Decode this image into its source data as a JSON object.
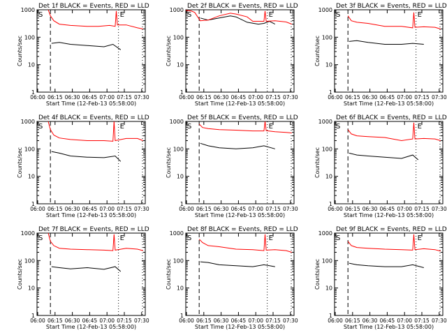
{
  "chart_data": [
    {
      "type": "line",
      "title": "Det 1f BLACK = Events, RED = LLD",
      "xlabel": "Start Time (12-Feb-13 05:58:00)",
      "ylabel": "Counts/sec",
      "xticks": [
        "06:00",
        "06:15",
        "06:30",
        "06:45",
        "07:00",
        "07:15",
        "07:30"
      ],
      "yticks": [
        "1",
        "10",
        "100",
        "1000"
      ],
      "x_range_min": [
        0,
        97
      ],
      "ylim": [
        1,
        1000
      ],
      "y_scale": "log",
      "series": [
        {
          "name": "BLACK = Events",
          "color": "#000000",
          "x": [
            13,
            20,
            30,
            45,
            60,
            68,
            75
          ],
          "y": [
            60,
            65,
            55,
            50,
            45,
            55,
            35
          ]
        },
        {
          "name": "RED = LLD",
          "color": "#ff0000",
          "x": [
            10,
            12,
            15,
            20,
            30,
            45,
            55,
            65,
            70,
            71,
            72,
            80,
            90,
            95
          ],
          "y": [
            1000,
            600,
            400,
            300,
            270,
            250,
            250,
            270,
            250,
            900,
            280,
            280,
            220,
            200
          ]
        }
      ],
      "markers": {
        "S": 12,
        "E": 73
      }
    },
    {
      "type": "line",
      "title": "Det 2f BLACK = Events, RED = LLD",
      "xlabel": "Start Time (12-Feb-13 05:58:00)",
      "ylabel": "Counts/sec",
      "xticks": [
        "06:00",
        "06:15",
        "06:30",
        "06:45",
        "07:00",
        "07:15",
        "07:30"
      ],
      "yticks": [
        "1",
        "10",
        "100",
        "1000"
      ],
      "x_range_min": [
        0,
        97
      ],
      "ylim": [
        1,
        1000
      ],
      "y_scale": "log",
      "series": [
        {
          "name": "BLACK = Events",
          "color": "#000000",
          "x": [
            13,
            20,
            30,
            40,
            45,
            55,
            65,
            70,
            75,
            80
          ],
          "y": [
            500,
            420,
            500,
            600,
            550,
            350,
            300,
            320,
            380,
            300
          ]
        },
        {
          "name": "RED = LLD",
          "color": "#ff0000",
          "x": [
            0,
            5,
            8,
            10,
            13,
            20,
            30,
            40,
            45,
            55,
            60,
            70,
            71,
            72,
            80,
            90,
            95
          ],
          "y": [
            950,
            900,
            800,
            600,
            400,
            420,
            600,
            750,
            700,
            550,
            380,
            380,
            900,
            380,
            400,
            360,
            300
          ]
        }
      ],
      "markers": {
        "S": 12,
        "E": 73
      }
    },
    {
      "type": "line",
      "title": "Det 3f BLACK = Events, RED = LLD",
      "xlabel": "Start Time (12-Feb-13 05:58:00)",
      "ylabel": "Counts/sec",
      "xticks": [
        "06:00",
        "06:15",
        "06:30",
        "06:45",
        "07:00",
        "07:15",
        "07:30"
      ],
      "yticks": [
        "1",
        "10",
        "100",
        "1000"
      ],
      "x_range_min": [
        0,
        97
      ],
      "ylim": [
        1,
        1000
      ],
      "y_scale": "log",
      "series": [
        {
          "name": "BLACK = Events",
          "color": "#000000",
          "x": [
            13,
            20,
            30,
            45,
            60,
            70,
            80
          ],
          "y": [
            70,
            75,
            65,
            55,
            55,
            60,
            55
          ]
        },
        {
          "name": "RED = LLD",
          "color": "#ff0000",
          "x": [
            12,
            15,
            20,
            30,
            45,
            60,
            70,
            71,
            72,
            80,
            90,
            95
          ],
          "y": [
            600,
            400,
            350,
            320,
            250,
            250,
            220,
            800,
            230,
            240,
            230,
            200
          ]
        }
      ],
      "markers": {
        "S": 12,
        "E": 73
      }
    },
    {
      "type": "line",
      "title": "Det 4f BLACK = Events, RED = LLD",
      "xlabel": "Start Time (12-Feb-13 05:58:00)",
      "ylabel": "Counts/sec",
      "xticks": [
        "06:00",
        "06:15",
        "06:30",
        "06:45",
        "07:00",
        "07:15",
        "07:30"
      ],
      "yticks": [
        "1",
        "10",
        "100",
        "1000"
      ],
      "x_range_min": [
        0,
        97
      ],
      "ylim": [
        1,
        1000
      ],
      "y_scale": "log",
      "series": [
        {
          "name": "BLACK = Events",
          "color": "#000000",
          "x": [
            13,
            20,
            30,
            45,
            60,
            70,
            75
          ],
          "y": [
            80,
            70,
            55,
            50,
            48,
            55,
            35
          ]
        },
        {
          "name": "RED = LLD",
          "color": "#ff0000",
          "x": [
            10,
            12,
            15,
            20,
            30,
            45,
            60,
            68,
            69,
            70,
            80,
            90,
            95
          ],
          "y": [
            1000,
            500,
            320,
            250,
            220,
            200,
            200,
            190,
            1000,
            200,
            240,
            240,
            200
          ]
        }
      ],
      "markers": {
        "S": 12,
        "E": 73
      }
    },
    {
      "type": "line",
      "title": "Det 5f BLACK = Events, RED = LLD",
      "xlabel": "Start Time (12-Feb-13 05:58:00)",
      "ylabel": "Counts/sec",
      "xticks": [
        "06:00",
        "06:15",
        "06:30",
        "06:45",
        "07:00",
        "07:15",
        "07:30"
      ],
      "yticks": [
        "1",
        "10",
        "100",
        "1000"
      ],
      "x_range_min": [
        0,
        97
      ],
      "ylim": [
        1,
        1000
      ],
      "y_scale": "log",
      "series": [
        {
          "name": "BLACK = Events",
          "color": "#000000",
          "x": [
            13,
            20,
            30,
            45,
            60,
            70,
            80
          ],
          "y": [
            160,
            130,
            110,
            100,
            110,
            130,
            100
          ]
        },
        {
          "name": "RED = LLD",
          "color": "#ff0000",
          "x": [
            12,
            15,
            20,
            30,
            45,
            60,
            70,
            71,
            72,
            80,
            90,
            95
          ],
          "y": [
            800,
            600,
            550,
            500,
            480,
            450,
            450,
            1000,
            460,
            420,
            400,
            380
          ]
        }
      ],
      "markers": {
        "S": 12,
        "E": 73
      }
    },
    {
      "type": "line",
      "title": "Det 6f BLACK = Events, RED = LLD",
      "xlabel": "Start Time (12-Feb-13 05:58:00)",
      "ylabel": "Counts/sec",
      "xticks": [
        "06:00",
        "06:15",
        "06:30",
        "06:45",
        "07:00",
        "07:15",
        "07:30"
      ],
      "yticks": [
        "1",
        "10",
        "100",
        "1000"
      ],
      "x_range_min": [
        0,
        97
      ],
      "ylim": [
        1,
        1000
      ],
      "y_scale": "log",
      "series": [
        {
          "name": "BLACK = Events",
          "color": "#000000",
          "x": [
            13,
            20,
            30,
            45,
            60,
            70,
            75
          ],
          "y": [
            70,
            60,
            55,
            50,
            45,
            60,
            40
          ]
        },
        {
          "name": "RED = LLD",
          "color": "#ff0000",
          "x": [
            12,
            15,
            20,
            30,
            45,
            60,
            70,
            71,
            72,
            80,
            90,
            95
          ],
          "y": [
            500,
            350,
            300,
            280,
            260,
            200,
            230,
            900,
            230,
            240,
            230,
            200
          ]
        }
      ],
      "markers": {
        "S": 12,
        "E": 73
      }
    },
    {
      "type": "line",
      "title": "Det 7f BLACK = Events, RED = LLD",
      "xlabel": "Start Time (12-Feb-13 05:58:00)",
      "ylabel": "Counts/sec",
      "xticks": [
        "06:00",
        "06:15",
        "06:30",
        "06:45",
        "07:00",
        "07:15",
        "07:30"
      ],
      "yticks": [
        "1",
        "10",
        "100",
        "1000"
      ],
      "x_range_min": [
        0,
        97
      ],
      "ylim": [
        1,
        1000
      ],
      "y_scale": "log",
      "series": [
        {
          "name": "BLACK = Events",
          "color": "#000000",
          "x": [
            13,
            20,
            30,
            45,
            60,
            70,
            75
          ],
          "y": [
            60,
            55,
            50,
            55,
            48,
            60,
            40
          ]
        },
        {
          "name": "RED = LLD",
          "color": "#ff0000",
          "x": [
            10,
            12,
            15,
            20,
            30,
            45,
            60,
            68,
            69,
            70,
            80,
            90,
            95
          ],
          "y": [
            1000,
            500,
            350,
            280,
            260,
            250,
            240,
            230,
            900,
            240,
            280,
            260,
            230
          ]
        }
      ],
      "markers": {
        "S": 12,
        "E": 73
      }
    },
    {
      "type": "line",
      "title": "Det 8f BLACK = Events, RED = LLD",
      "xlabel": "Start Time (12-Feb-13 05:58:00)",
      "ylabel": "Counts/sec",
      "xticks": [
        "06:00",
        "06:15",
        "06:30",
        "06:45",
        "07:00",
        "07:15",
        "07:30"
      ],
      "yticks": [
        "1",
        "10",
        "100",
        "1000"
      ],
      "x_range_min": [
        0,
        97
      ],
      "ylim": [
        1,
        1000
      ],
      "y_scale": "log",
      "series": [
        {
          "name": "BLACK = Events",
          "color": "#000000",
          "x": [
            13,
            20,
            30,
            45,
            60,
            70,
            80
          ],
          "y": [
            90,
            85,
            70,
            65,
            60,
            70,
            60
          ]
        },
        {
          "name": "RED = LLD",
          "color": "#ff0000",
          "x": [
            12,
            15,
            20,
            30,
            45,
            60,
            70,
            71,
            72,
            80,
            90,
            95
          ],
          "y": [
            600,
            450,
            350,
            320,
            260,
            250,
            230,
            900,
            240,
            250,
            230,
            200
          ]
        }
      ],
      "markers": {
        "S": 12,
        "E": 73
      }
    },
    {
      "type": "line",
      "title": "Det 9f BLACK = Events, RED = LLD",
      "xlabel": "Start Time (12-Feb-13 05:58:00)",
      "ylabel": "Counts/sec",
      "xticks": [
        "06:00",
        "06:15",
        "06:30",
        "06:45",
        "07:00",
        "07:15",
        "07:30"
      ],
      "yticks": [
        "1",
        "10",
        "100",
        "1000"
      ],
      "x_range_min": [
        0,
        97
      ],
      "ylim": [
        1,
        1000
      ],
      "y_scale": "log",
      "series": [
        {
          "name": "BLACK = Events",
          "color": "#000000",
          "x": [
            13,
            20,
            30,
            45,
            60,
            70,
            80
          ],
          "y": [
            80,
            70,
            65,
            60,
            60,
            70,
            55
          ]
        },
        {
          "name": "RED = LLD",
          "color": "#ff0000",
          "x": [
            12,
            15,
            20,
            30,
            45,
            60,
            70,
            71,
            72,
            80,
            90,
            95
          ],
          "y": [
            500,
            350,
            300,
            280,
            260,
            250,
            240,
            900,
            250,
            270,
            250,
            220
          ]
        }
      ],
      "markers": {
        "S": 12,
        "E": 73
      }
    }
  ]
}
